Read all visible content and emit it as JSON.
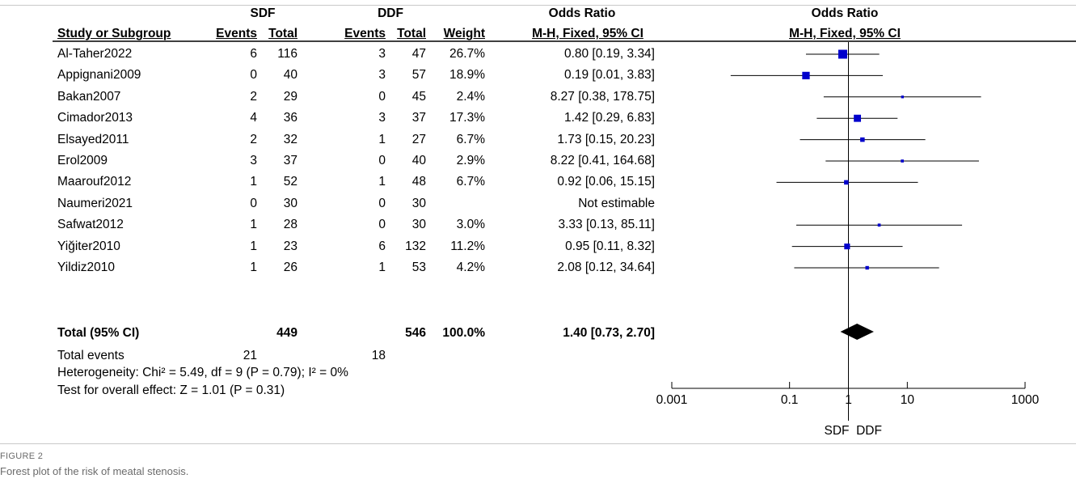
{
  "header": {
    "group1": "SDF",
    "group2": "DDF",
    "or_group_label": "Odds Ratio",
    "study_col": "Study or Subgroup",
    "events_1": "Events",
    "total_1": "Total",
    "events_2": "Events",
    "total_2": "Total",
    "weight": "Weight",
    "method": "M-H, Fixed, 95% CI",
    "plot_title": "Odds Ratio",
    "plot_method": "M-H, Fixed, 95% CI"
  },
  "summary": {
    "total_label": "Total (95% CI)",
    "total_1": "449",
    "total_2": "546",
    "weight": "100.0%",
    "or_text": "1.40 [0.73, 2.70]",
    "events_label": "Total events",
    "events_1": "21",
    "events_2": "18",
    "heterogeneity": "Heterogeneity: Chi² = 5.49, df = 9 (P = 0.79); I² = 0%",
    "overall_effect": "Test for overall effect: Z = 1.01 (P = 0.31)"
  },
  "axis": {
    "ticks": [
      "0.001",
      "0.1",
      "1",
      "10",
      "1000"
    ],
    "favours_left": "SDF",
    "favours_right": "DDF"
  },
  "caption": {
    "label": "FIGURE 2",
    "text": "Forest plot of the risk of meatal stenosis."
  },
  "colors": {
    "marker": "#0000cc",
    "line": "#000000",
    "rule": "#c9c9c9",
    "caption": "#6b6b6b"
  },
  "chart_data": {
    "type": "forest",
    "scale": "log",
    "xlim": [
      0.001,
      1000
    ],
    "null_value": 1,
    "studies": [
      {
        "name": "Al-Taher2022",
        "events_1": "6",
        "total_1": "116",
        "events_2": "3",
        "total_2": "47",
        "weight": "26.7%",
        "weight_value": 26.7,
        "ci_text": "0.80 [0.19, 3.34]",
        "or": 0.8,
        "lo": 0.19,
        "hi": 3.34
      },
      {
        "name": "Appignani2009",
        "events_1": "0",
        "total_1": "40",
        "events_2": "3",
        "total_2": "57",
        "weight": "18.9%",
        "weight_value": 18.9,
        "ci_text": "0.19 [0.01, 3.83]",
        "or": 0.19,
        "lo": 0.01,
        "hi": 3.83
      },
      {
        "name": "Bakan2007",
        "events_1": "2",
        "total_1": "29",
        "events_2": "0",
        "total_2": "45",
        "weight": "2.4%",
        "weight_value": 2.4,
        "ci_text": "8.27 [0.38, 178.75]",
        "or": 8.27,
        "lo": 0.38,
        "hi": 178.75
      },
      {
        "name": "Cimador2013",
        "events_1": "4",
        "total_1": "36",
        "events_2": "3",
        "total_2": "37",
        "weight": "17.3%",
        "weight_value": 17.3,
        "ci_text": "1.42 [0.29, 6.83]",
        "or": 1.42,
        "lo": 0.29,
        "hi": 6.83
      },
      {
        "name": "Elsayed2011",
        "events_1": "2",
        "total_1": "32",
        "events_2": "1",
        "total_2": "27",
        "weight": "6.7%",
        "weight_value": 6.7,
        "ci_text": "1.73 [0.15, 20.23]",
        "or": 1.73,
        "lo": 0.15,
        "hi": 20.23
      },
      {
        "name": "Erol2009",
        "events_1": "3",
        "total_1": "37",
        "events_2": "0",
        "total_2": "40",
        "weight": "2.9%",
        "weight_value": 2.9,
        "ci_text": "8.22 [0.41, 164.68]",
        "or": 8.22,
        "lo": 0.41,
        "hi": 164.68
      },
      {
        "name": "Maarouf2012",
        "events_1": "1",
        "total_1": "52",
        "events_2": "1",
        "total_2": "48",
        "weight": "6.7%",
        "weight_value": 6.7,
        "ci_text": "0.92 [0.06, 15.15]",
        "or": 0.92,
        "lo": 0.06,
        "hi": 15.15
      },
      {
        "name": "Naumeri2021",
        "events_1": "0",
        "total_1": "30",
        "events_2": "0",
        "total_2": "30",
        "weight": "",
        "weight_value": null,
        "ci_text": "Not estimable",
        "or": null,
        "lo": null,
        "hi": null
      },
      {
        "name": "Safwat2012",
        "events_1": "1",
        "total_1": "28",
        "events_2": "0",
        "total_2": "30",
        "weight": "3.0%",
        "weight_value": 3.0,
        "ci_text": "3.33 [0.13, 85.11]",
        "or": 3.33,
        "lo": 0.13,
        "hi": 85.11
      },
      {
        "name": "Yiğiter2010",
        "events_1": "1",
        "total_1": "23",
        "events_2": "6",
        "total_2": "132",
        "weight": "11.2%",
        "weight_value": 11.2,
        "ci_text": "0.95 [0.11, 8.32]",
        "or": 0.95,
        "lo": 0.11,
        "hi": 8.32
      },
      {
        "name": "Yildiz2010",
        "events_1": "1",
        "total_1": "26",
        "events_2": "1",
        "total_2": "53",
        "weight": "4.2%",
        "weight_value": 4.2,
        "ci_text": "2.08 [0.12, 34.64]",
        "or": 2.08,
        "lo": 0.12,
        "hi": 34.64
      }
    ],
    "pooled": {
      "or": 1.4,
      "lo": 0.73,
      "hi": 2.7
    }
  }
}
